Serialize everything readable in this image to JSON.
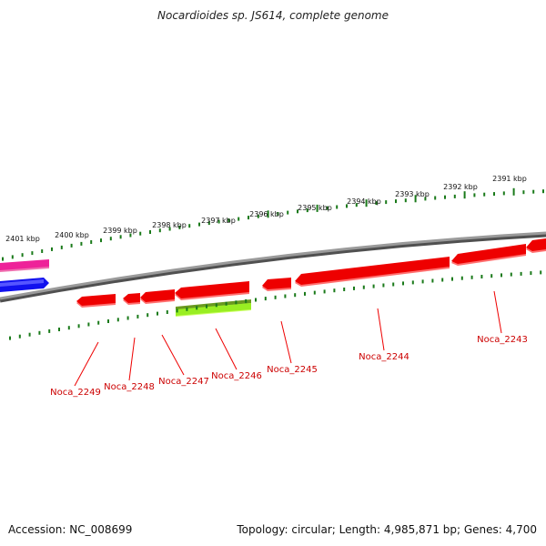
{
  "title": "Nocardioides sp. JS614, complete genome",
  "footer": {
    "accession": "Accession: NC_008699",
    "summary": "Topology: circular; Length: 4,985,871 bp; Genes: 4,700"
  },
  "colors": {
    "backbone": "#808080",
    "ruler_ticks": "#1a7a1a",
    "gene_forward": "#ff0000",
    "gene_reverse": "#ff0000",
    "gene_highlight": "#99ee22",
    "track_magenta": "#ee2299",
    "track_blue": "#1111ee",
    "gene_label": "#cc0000"
  },
  "ruler": {
    "labels": [
      "2401 kbp",
      "2400 kbp",
      "2399 kbp",
      "2398 kbp",
      "2397 kbp",
      "2396 kbp",
      "2395 kbp",
      "2394 kbp",
      "2393 kbp",
      "2392 kbp",
      "2391 kbp"
    ]
  },
  "genes": [
    {
      "label": "Noca_2249"
    },
    {
      "label": "Noca_2248"
    },
    {
      "label": "Noca_2247"
    },
    {
      "label": "Noca_2246"
    },
    {
      "label": "Noca_2245"
    },
    {
      "label": "Noca_2244"
    },
    {
      "label": "Noca_2243"
    }
  ]
}
